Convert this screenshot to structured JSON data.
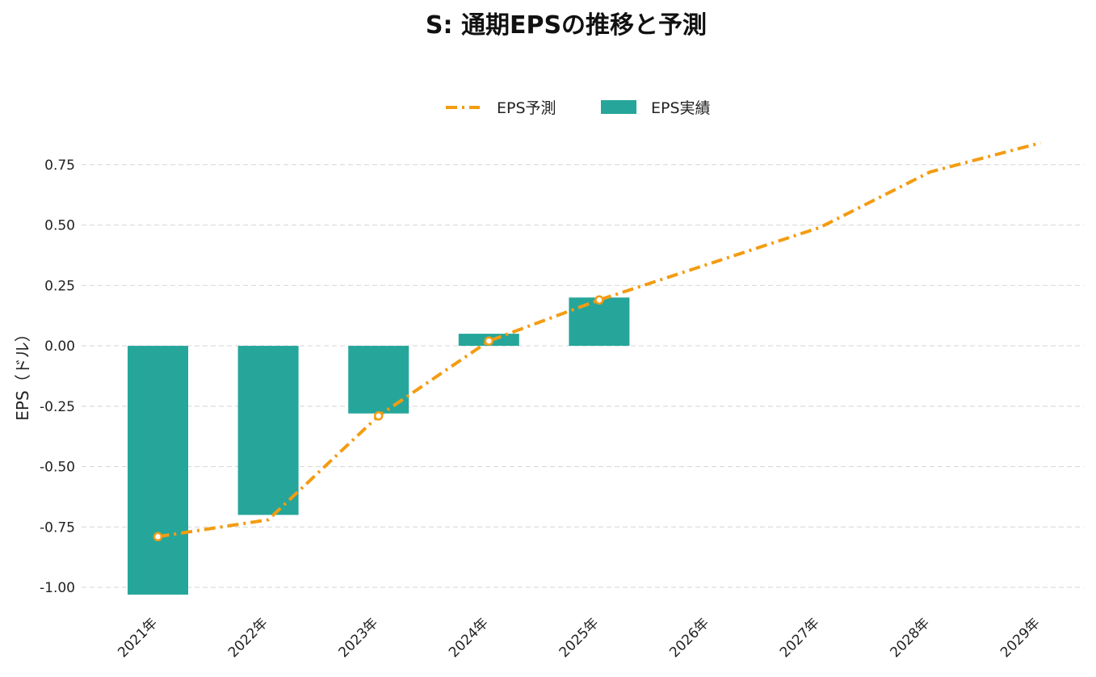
{
  "chart_data": {
    "type": "bar",
    "title": "S: 通期EPSの推移と予測",
    "xlabel": "",
    "ylabel": "EPS（ドル）",
    "categories": [
      "2021年",
      "2022年",
      "2023年",
      "2024年",
      "2025年",
      "2026年",
      "2027年",
      "2028年",
      "2029年"
    ],
    "ylim": [
      -1.07,
      0.93
    ],
    "yticks": [
      -1.0,
      -0.75,
      -0.5,
      -0.25,
      0.0,
      0.25,
      0.5,
      0.75
    ],
    "ytick_labels": [
      "-1.00",
      "-0.75",
      "-0.50",
      "-0.25",
      "0.00",
      "0.25",
      "0.50",
      "0.75"
    ],
    "grid": true,
    "legend_position": "top-center",
    "series": [
      {
        "name": "EPS予測",
        "type": "line",
        "style": "dash-dot",
        "color": "#f39c12",
        "values": [
          -0.79,
          -0.72,
          -0.29,
          0.02,
          0.19,
          0.34,
          0.49,
          0.72,
          0.84
        ],
        "marked_points": [
          0,
          2,
          3,
          4
        ]
      },
      {
        "name": "EPS実績",
        "type": "bar",
        "color": "#26a69a",
        "values": [
          -1.03,
          -0.7,
          -0.28,
          0.05,
          0.2,
          null,
          null,
          null,
          null
        ]
      }
    ],
    "colors": {
      "grid": "#d9d9d9",
      "text": "#222222",
      "marker_fill": "#ffffff"
    }
  }
}
